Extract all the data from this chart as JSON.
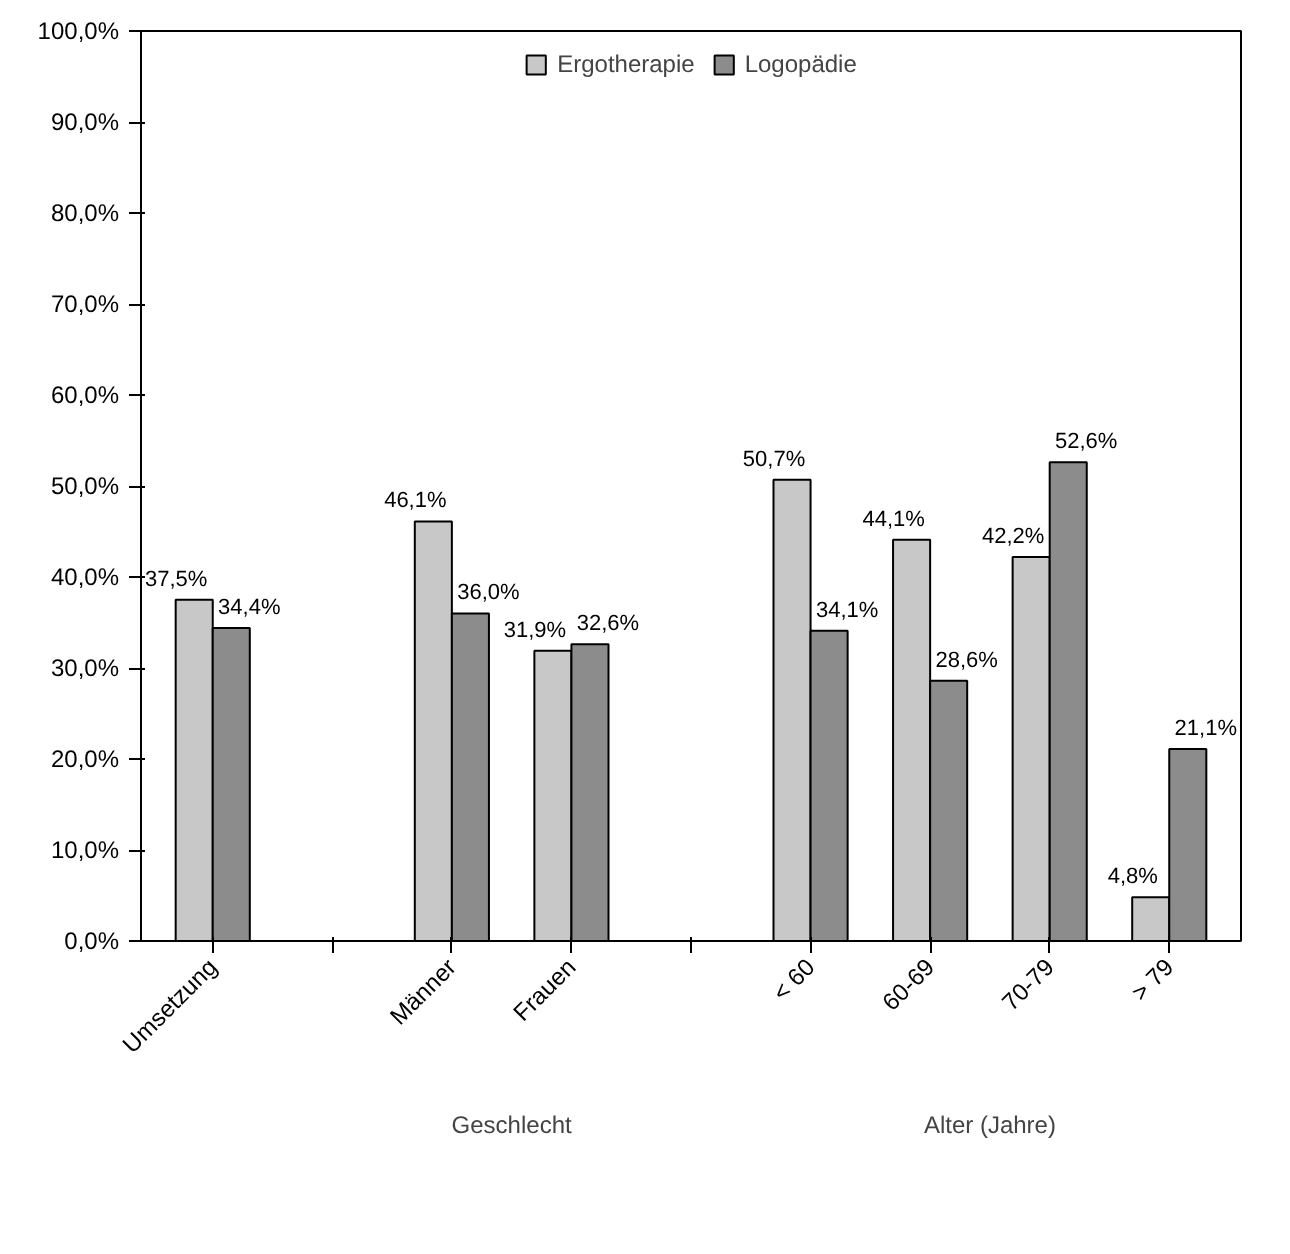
{
  "chart_data": {
    "type": "bar",
    "categories": [
      "Umsetzung",
      null,
      "Männer",
      "Frauen",
      null,
      "< 60",
      "60-69",
      "70-79",
      "> 79"
    ],
    "series": [
      {
        "name": "Ergotherapie",
        "color": "#c8c8c8",
        "values": [
          37.5,
          null,
          46.1,
          31.9,
          null,
          50.7,
          44.1,
          42.2,
          4.8
        ],
        "value_labels": [
          "37,5%",
          null,
          "46,1%",
          "31,9%",
          null,
          "50,7%",
          "44,1%",
          "42,2%",
          "4,8%"
        ]
      },
      {
        "name": "Logopädie",
        "color": "#8c8c8c",
        "values": [
          34.4,
          null,
          36.0,
          32.6,
          null,
          34.1,
          28.6,
          52.6,
          21.1
        ],
        "value_labels": [
          "34,4%",
          null,
          "36,0%",
          "32,6%",
          null,
          "34,1%",
          "28,6%",
          "52,6%",
          "21,1%"
        ]
      }
    ],
    "ylim": [
      0,
      100
    ],
    "yticks": [
      {
        "value": 0,
        "label": "0,0%"
      },
      {
        "value": 10,
        "label": "10,0%"
      },
      {
        "value": 20,
        "label": "20,0%"
      },
      {
        "value": 30,
        "label": "30,0%"
      },
      {
        "value": 40,
        "label": "40,0%"
      },
      {
        "value": 50,
        "label": "50,0%"
      },
      {
        "value": 60,
        "label": "60,0%"
      },
      {
        "value": 70,
        "label": "70,0%"
      },
      {
        "value": 80,
        "label": "80,0%"
      },
      {
        "value": 90,
        "label": "90,0%"
      },
      {
        "value": 100,
        "label": "100,0%"
      }
    ],
    "annotations": [
      "Geschlecht",
      "Alter (Jahre)"
    ],
    "legend": "top",
    "grid": false
  }
}
